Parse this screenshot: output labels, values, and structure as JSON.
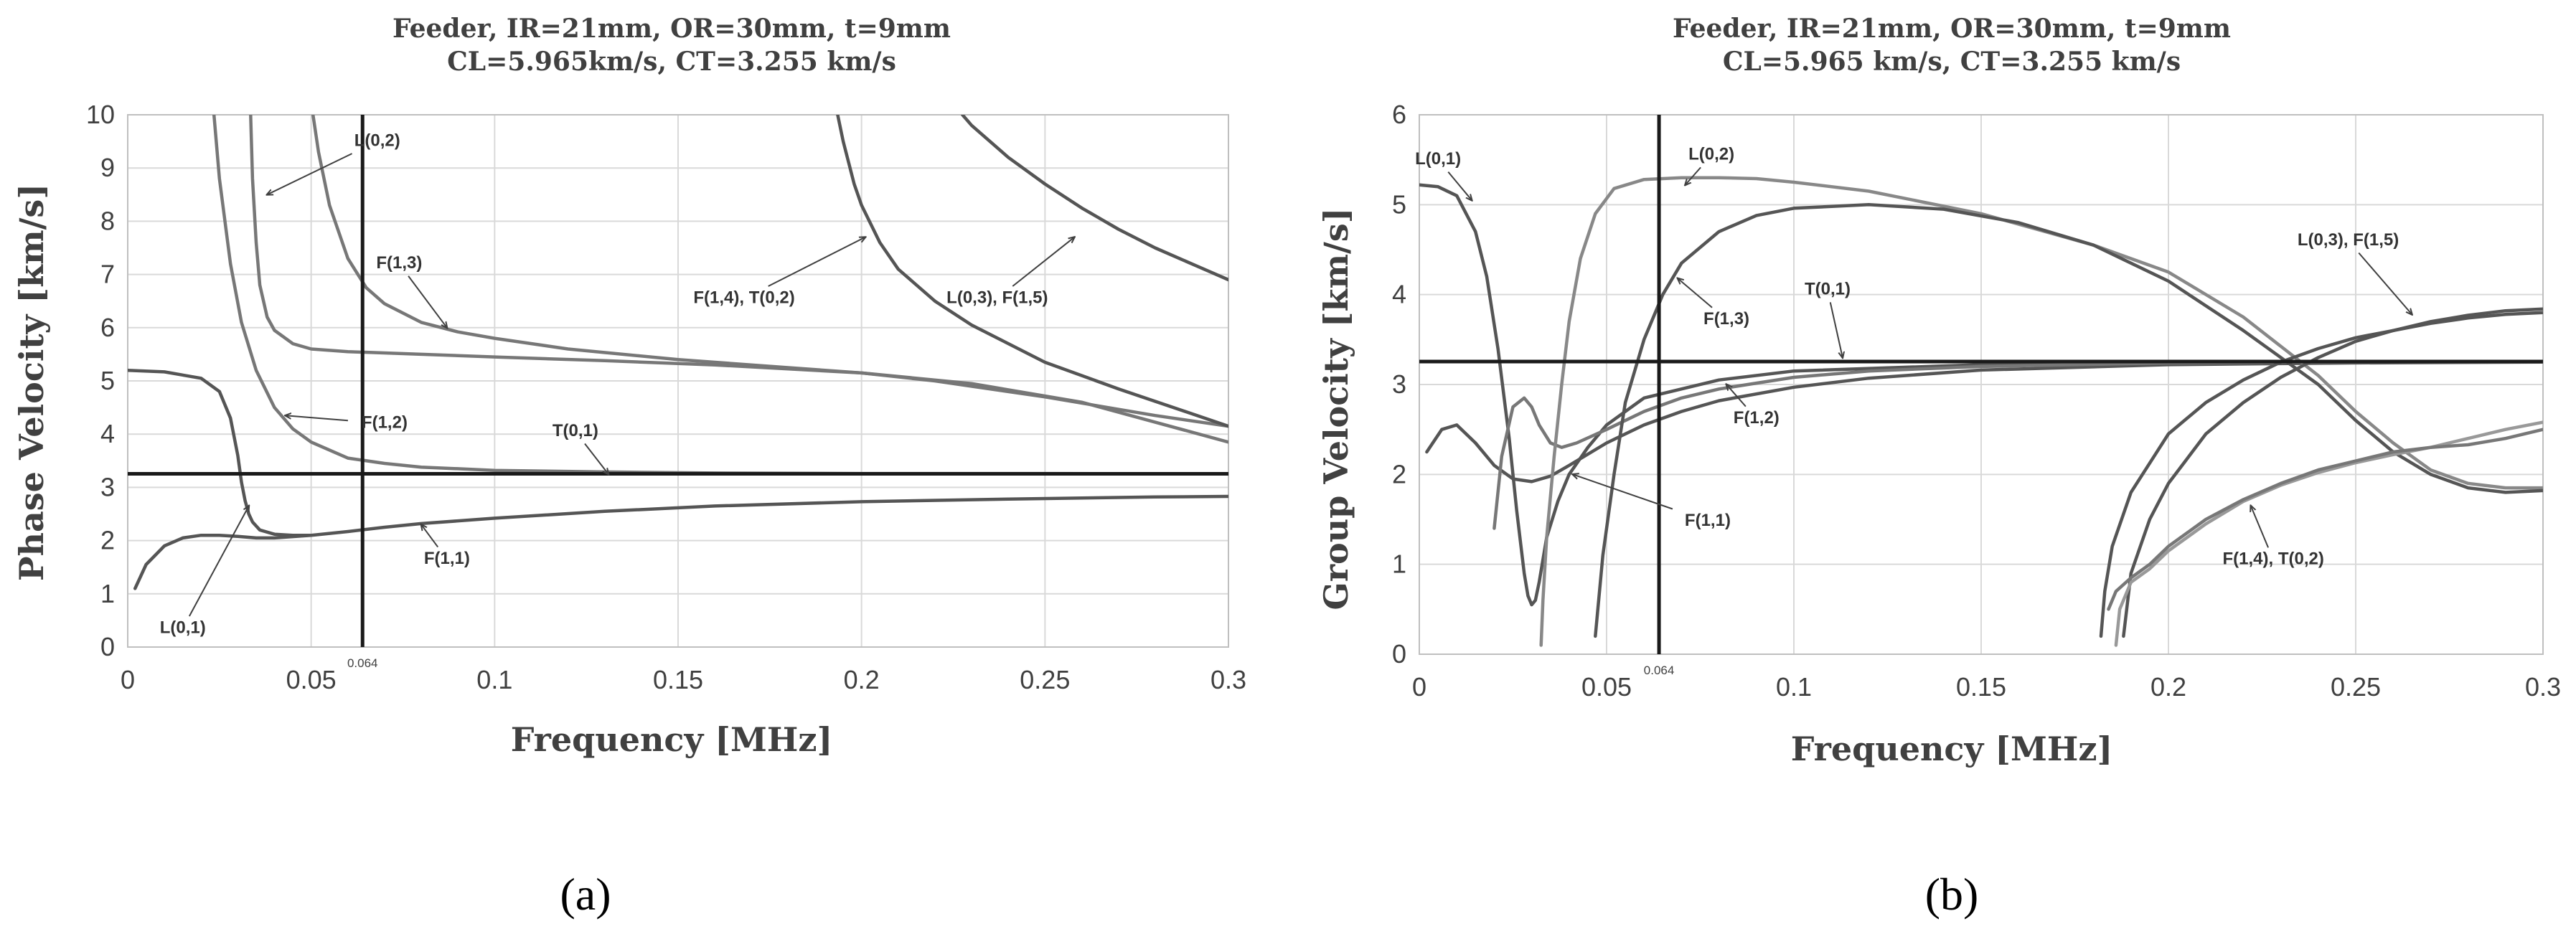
{
  "chart_data": [
    {
      "type": "line",
      "panel_label": "(a)",
      "title": "Feeder, IR=21mm, OR=30mm, t=9mm",
      "subtitle": "CL=5.965km/s, CT=3.255 km/s",
      "xlabel": "Frequency [MHz]",
      "ylabel": "Phase Velocity [km/s]",
      "xlim": [
        0,
        0.3
      ],
      "ylim": [
        0,
        10
      ],
      "xticks": [
        0,
        0.05,
        0.1,
        0.15,
        0.2,
        0.25,
        0.3
      ],
      "xtick_labels": [
        "0",
        "0.05",
        "0.1",
        "0.15",
        "0.2",
        "0.25",
        "0.3"
      ],
      "yticks": [
        0,
        1,
        2,
        3,
        4,
        5,
        6,
        7,
        8,
        9,
        10
      ],
      "ytick_labels": [
        "0",
        "1",
        "2",
        "3",
        "4",
        "5",
        "6",
        "7",
        "8",
        "9",
        "10"
      ],
      "grid": true,
      "vline": {
        "x": 0.064,
        "label": "0.064"
      },
      "hline": {
        "y": 3.255
      },
      "series": [
        {
          "name": "L(0,1)",
          "color": "#555555",
          "x": [
            0,
            0.01,
            0.02,
            0.025,
            0.028,
            0.03,
            0.031,
            0.032,
            0.033,
            0.034,
            0.036,
            0.04,
            0.045,
            0.05
          ],
          "y": [
            5.2,
            5.17,
            5.05,
            4.8,
            4.3,
            3.6,
            3.1,
            2.75,
            2.5,
            2.35,
            2.2,
            2.12,
            2.1,
            2.1
          ]
        },
        {
          "name": "F(1,1)",
          "color": "#555555",
          "x": [
            0.002,
            0.005,
            0.01,
            0.015,
            0.02,
            0.025,
            0.03,
            0.035,
            0.04,
            0.05,
            0.06,
            0.07,
            0.08,
            0.1,
            0.13,
            0.16,
            0.2,
            0.24,
            0.28,
            0.3
          ],
          "y": [
            1.1,
            1.55,
            1.9,
            2.05,
            2.1,
            2.1,
            2.08,
            2.05,
            2.05,
            2.1,
            2.17,
            2.25,
            2.32,
            2.42,
            2.55,
            2.65,
            2.73,
            2.78,
            2.82,
            2.83
          ]
        },
        {
          "name": "F(1,2)",
          "color": "#777777",
          "x": [
            0.0235,
            0.025,
            0.028,
            0.031,
            0.035,
            0.04,
            0.045,
            0.05,
            0.06,
            0.07,
            0.08,
            0.1,
            0.13,
            0.16,
            0.2,
            0.25,
            0.3
          ],
          "y": [
            10,
            8.8,
            7.2,
            6.1,
            5.2,
            4.5,
            4.1,
            3.85,
            3.55,
            3.45,
            3.38,
            3.32,
            3.29,
            3.27,
            3.26,
            3.26,
            3.255
          ]
        },
        {
          "name": "L(0,2)",
          "color": "#777777",
          "x": [
            0.0335,
            0.034,
            0.035,
            0.036,
            0.038,
            0.04,
            0.045,
            0.05,
            0.06,
            0.08,
            0.1,
            0.13,
            0.16,
            0.2,
            0.23,
            0.26,
            0.3
          ],
          "y": [
            10,
            8.8,
            7.6,
            6.8,
            6.2,
            5.95,
            5.7,
            5.6,
            5.55,
            5.5,
            5.45,
            5.38,
            5.3,
            5.15,
            4.95,
            4.6,
            3.85
          ]
        },
        {
          "name": "F(1,3)",
          "color": "#777777",
          "x": [
            0.0505,
            0.052,
            0.055,
            0.06,
            0.065,
            0.07,
            0.08,
            0.09,
            0.1,
            0.12,
            0.15,
            0.18,
            0.2,
            0.22,
            0.25,
            0.28,
            0.3
          ],
          "y": [
            10,
            9.3,
            8.3,
            7.3,
            6.75,
            6.45,
            6.1,
            5.92,
            5.8,
            5.6,
            5.4,
            5.25,
            5.15,
            5.0,
            4.7,
            4.35,
            4.15
          ]
        },
        {
          "name": "F(1,4), T(0,2)",
          "color": "#555555",
          "x": [
            0.1935,
            0.195,
            0.198,
            0.2,
            0.205,
            0.21,
            0.22,
            0.23,
            0.25,
            0.27,
            0.3
          ],
          "y": [
            10,
            9.5,
            8.7,
            8.3,
            7.6,
            7.1,
            6.5,
            6.05,
            5.35,
            4.85,
            4.15
          ]
        },
        {
          "name": "L(0,3), F(1,5)",
          "color": "#555555",
          "x": [
            0.2275,
            0.23,
            0.24,
            0.25,
            0.26,
            0.27,
            0.28,
            0.29,
            0.3
          ],
          "y": [
            10,
            9.8,
            9.2,
            8.7,
            8.25,
            7.85,
            7.5,
            7.2,
            6.9
          ]
        }
      ],
      "annotations": [
        {
          "label": "L(0,2)",
          "tx": 0.068,
          "ty": 9.5,
          "ax": 0.038,
          "ay": 8.5
        },
        {
          "label": "F(1,3)",
          "tx": 0.074,
          "ty": 7.2,
          "ax": 0.087,
          "ay": 6.0
        },
        {
          "label": "F(1,2)",
          "tx": 0.07,
          "ty": 4.2,
          "ax": 0.043,
          "ay": 4.35
        },
        {
          "label": "T(0,1)",
          "tx": 0.122,
          "ty": 4.05,
          "ax": 0.131,
          "ay": 3.25
        },
        {
          "label": "L(0,1)",
          "tx": 0.015,
          "ty": 0.35,
          "ax": 0.033,
          "ay": 2.65
        },
        {
          "label": "F(1,1)",
          "tx": 0.087,
          "ty": 1.65,
          "ax": 0.08,
          "ay": 2.3
        },
        {
          "label": "F(1,4), T(0,2)",
          "tx": 0.168,
          "ty": 6.55,
          "ax": 0.201,
          "ay": 7.7
        },
        {
          "label": "L(0,3), F(1,5)",
          "tx": 0.237,
          "ty": 6.55,
          "ax": 0.258,
          "ay": 7.7
        }
      ]
    },
    {
      "type": "line",
      "panel_label": "(b)",
      "title": "Feeder, IR=21mm, OR=30mm, t=9mm",
      "subtitle": "CL=5.965 km/s, CT=3.255 km/s",
      "xlabel": "Frequency [MHz]",
      "ylabel": "Group Velocity [km/s]",
      "xlim": [
        0,
        0.3
      ],
      "ylim": [
        0,
        6
      ],
      "xticks": [
        0,
        0.05,
        0.1,
        0.15,
        0.2,
        0.25,
        0.3
      ],
      "xtick_labels": [
        "0",
        "0.05",
        "0.1",
        "0.15",
        "0.2",
        "0.25",
        "0.3"
      ],
      "yticks": [
        0,
        1,
        2,
        3,
        4,
        5,
        6
      ],
      "ytick_labels": [
        "0",
        "1",
        "2",
        "3",
        "4",
        "5",
        "6"
      ],
      "grid": true,
      "vline": {
        "x": 0.064,
        "label": "0.064"
      },
      "hline": {
        "y": 3.255
      },
      "series": [
        {
          "name": "L(0,1)",
          "color": "#555555",
          "x": [
            0,
            0.005,
            0.01,
            0.015,
            0.018,
            0.021,
            0.024,
            0.026,
            0.028,
            0.029,
            0.03,
            0.031,
            0.032,
            0.034,
            0.037,
            0.04,
            0.045,
            0.05,
            0.06,
            0.08,
            0.1,
            0.15,
            0.2,
            0.25,
            0.3
          ],
          "y": [
            5.22,
            5.2,
            5.1,
            4.7,
            4.2,
            3.4,
            2.4,
            1.6,
            0.9,
            0.65,
            0.55,
            0.6,
            0.8,
            1.3,
            1.7,
            2.0,
            2.3,
            2.55,
            2.85,
            3.05,
            3.15,
            3.22,
            3.24,
            3.25,
            3.25
          ]
        },
        {
          "name": "F(1,1)",
          "color": "#555555",
          "x": [
            0.002,
            0.006,
            0.01,
            0.015,
            0.02,
            0.025,
            0.03,
            0.035,
            0.04,
            0.05,
            0.06,
            0.07,
            0.08,
            0.1,
            0.12,
            0.15,
            0.2,
            0.25,
            0.3
          ],
          "y": [
            2.25,
            2.5,
            2.55,
            2.35,
            2.1,
            1.95,
            1.92,
            1.98,
            2.1,
            2.35,
            2.55,
            2.7,
            2.82,
            2.97,
            3.07,
            3.16,
            3.22,
            3.24,
            3.25
          ]
        },
        {
          "name": "F(1,2)",
          "color": "#777777",
          "x": [
            0.02,
            0.022,
            0.025,
            0.028,
            0.03,
            0.032,
            0.035,
            0.038,
            0.042,
            0.05,
            0.06,
            0.07,
            0.08,
            0.1,
            0.12,
            0.15,
            0.2,
            0.25,
            0.3
          ],
          "y": [
            1.4,
            2.2,
            2.75,
            2.85,
            2.75,
            2.55,
            2.35,
            2.3,
            2.35,
            2.5,
            2.7,
            2.85,
            2.95,
            3.08,
            3.15,
            3.2,
            3.24,
            3.25,
            3.25
          ]
        },
        {
          "name": "L(0,2)",
          "color": "#888888",
          "x": [
            0.0325,
            0.033,
            0.034,
            0.036,
            0.038,
            0.04,
            0.043,
            0.047,
            0.052,
            0.06,
            0.07,
            0.08,
            0.09,
            0.1,
            0.12,
            0.15,
            0.18,
            0.2,
            0.22,
            0.24,
            0.25,
            0.26,
            0.27,
            0.28,
            0.29,
            0.3
          ],
          "y": [
            0.1,
            0.6,
            1.3,
            2.2,
            3.0,
            3.7,
            4.4,
            4.9,
            5.18,
            5.28,
            5.3,
            5.3,
            5.29,
            5.25,
            5.15,
            4.9,
            4.55,
            4.25,
            3.75,
            3.1,
            2.7,
            2.35,
            2.05,
            1.9,
            1.85,
            1.85
          ]
        },
        {
          "name": "F(1,3)",
          "color": "#555555",
          "x": [
            0.047,
            0.049,
            0.052,
            0.055,
            0.06,
            0.065,
            0.07,
            0.08,
            0.09,
            0.1,
            0.12,
            0.14,
            0.16,
            0.18,
            0.2,
            0.22,
            0.24,
            0.25,
            0.26,
            0.27,
            0.28,
            0.29,
            0.3
          ],
          "y": [
            0.2,
            1.1,
            2.0,
            2.8,
            3.5,
            4.0,
            4.35,
            4.7,
            4.88,
            4.96,
            5.0,
            4.95,
            4.8,
            4.55,
            4.15,
            3.6,
            3.0,
            2.6,
            2.25,
            2.0,
            1.85,
            1.8,
            1.82
          ]
        },
        {
          "name": "L(0,3), F(1,5)",
          "color": "#555555",
          "x": [
            0.182,
            0.183,
            0.185,
            0.19,
            0.2,
            0.21,
            0.22,
            0.23,
            0.24,
            0.25,
            0.26,
            0.27,
            0.28,
            0.29,
            0.3
          ],
          "y": [
            0.2,
            0.7,
            1.2,
            1.8,
            2.45,
            2.8,
            3.05,
            3.25,
            3.4,
            3.52,
            3.6,
            3.68,
            3.74,
            3.78,
            3.8
          ]
        },
        {
          "name": "L(0,3), F(1,5) (2)",
          "color": "#555555",
          "x": [
            0.188,
            0.19,
            0.195,
            0.2,
            0.21,
            0.22,
            0.23,
            0.24,
            0.25,
            0.26,
            0.27,
            0.28,
            0.29,
            0.3
          ],
          "y": [
            0.2,
            0.9,
            1.5,
            1.9,
            2.45,
            2.8,
            3.08,
            3.3,
            3.48,
            3.6,
            3.7,
            3.77,
            3.82,
            3.84
          ]
        },
        {
          "name": "F(1,4), T(0,2)",
          "color": "#999999",
          "x": [
            0.186,
            0.187,
            0.19,
            0.195,
            0.2,
            0.21,
            0.22,
            0.23,
            0.24,
            0.25,
            0.26,
            0.27,
            0.28,
            0.29,
            0.3
          ],
          "y": [
            0.1,
            0.5,
            0.8,
            0.95,
            1.15,
            1.45,
            1.7,
            1.88,
            2.02,
            2.13,
            2.22,
            2.3,
            2.4,
            2.5,
            2.58
          ]
        },
        {
          "name": "F(1,4), T(0,2) (2)",
          "color": "#777777",
          "x": [
            0.184,
            0.186,
            0.19,
            0.195,
            0.2,
            0.21,
            0.22,
            0.23,
            0.24,
            0.25,
            0.26,
            0.27,
            0.28,
            0.29,
            0.3
          ],
          "y": [
            0.5,
            0.7,
            0.85,
            1.0,
            1.2,
            1.5,
            1.72,
            1.9,
            2.05,
            2.15,
            2.25,
            2.3,
            2.33,
            2.4,
            2.5
          ]
        }
      ],
      "annotations": [
        {
          "label": "L(0,1)",
          "tx": 0.005,
          "ty": 5.5,
          "ax": 0.014,
          "ay": 5.05
        },
        {
          "label": "L(0,2)",
          "tx": 0.078,
          "ty": 5.55,
          "ax": 0.071,
          "ay": 5.22
        },
        {
          "label": "F(1,3)",
          "tx": 0.082,
          "ty": 3.72,
          "ax": 0.069,
          "ay": 4.18
        },
        {
          "label": "T(0,1)",
          "tx": 0.109,
          "ty": 4.05,
          "ax": 0.113,
          "ay": 3.3
        },
        {
          "label": "F(1,2)",
          "tx": 0.09,
          "ty": 2.62,
          "ax": 0.082,
          "ay": 3.0
        },
        {
          "label": "F(1,1)",
          "tx": 0.077,
          "ty": 1.48,
          "ax": 0.041,
          "ay": 2.0
        },
        {
          "label": "L(0,3), F(1,5)",
          "tx": 0.248,
          "ty": 4.6,
          "ax": 0.265,
          "ay": 3.78
        },
        {
          "label": "F(1,4), T(0,2)",
          "tx": 0.228,
          "ty": 1.05,
          "ax": 0.222,
          "ay": 1.65
        }
      ]
    }
  ]
}
